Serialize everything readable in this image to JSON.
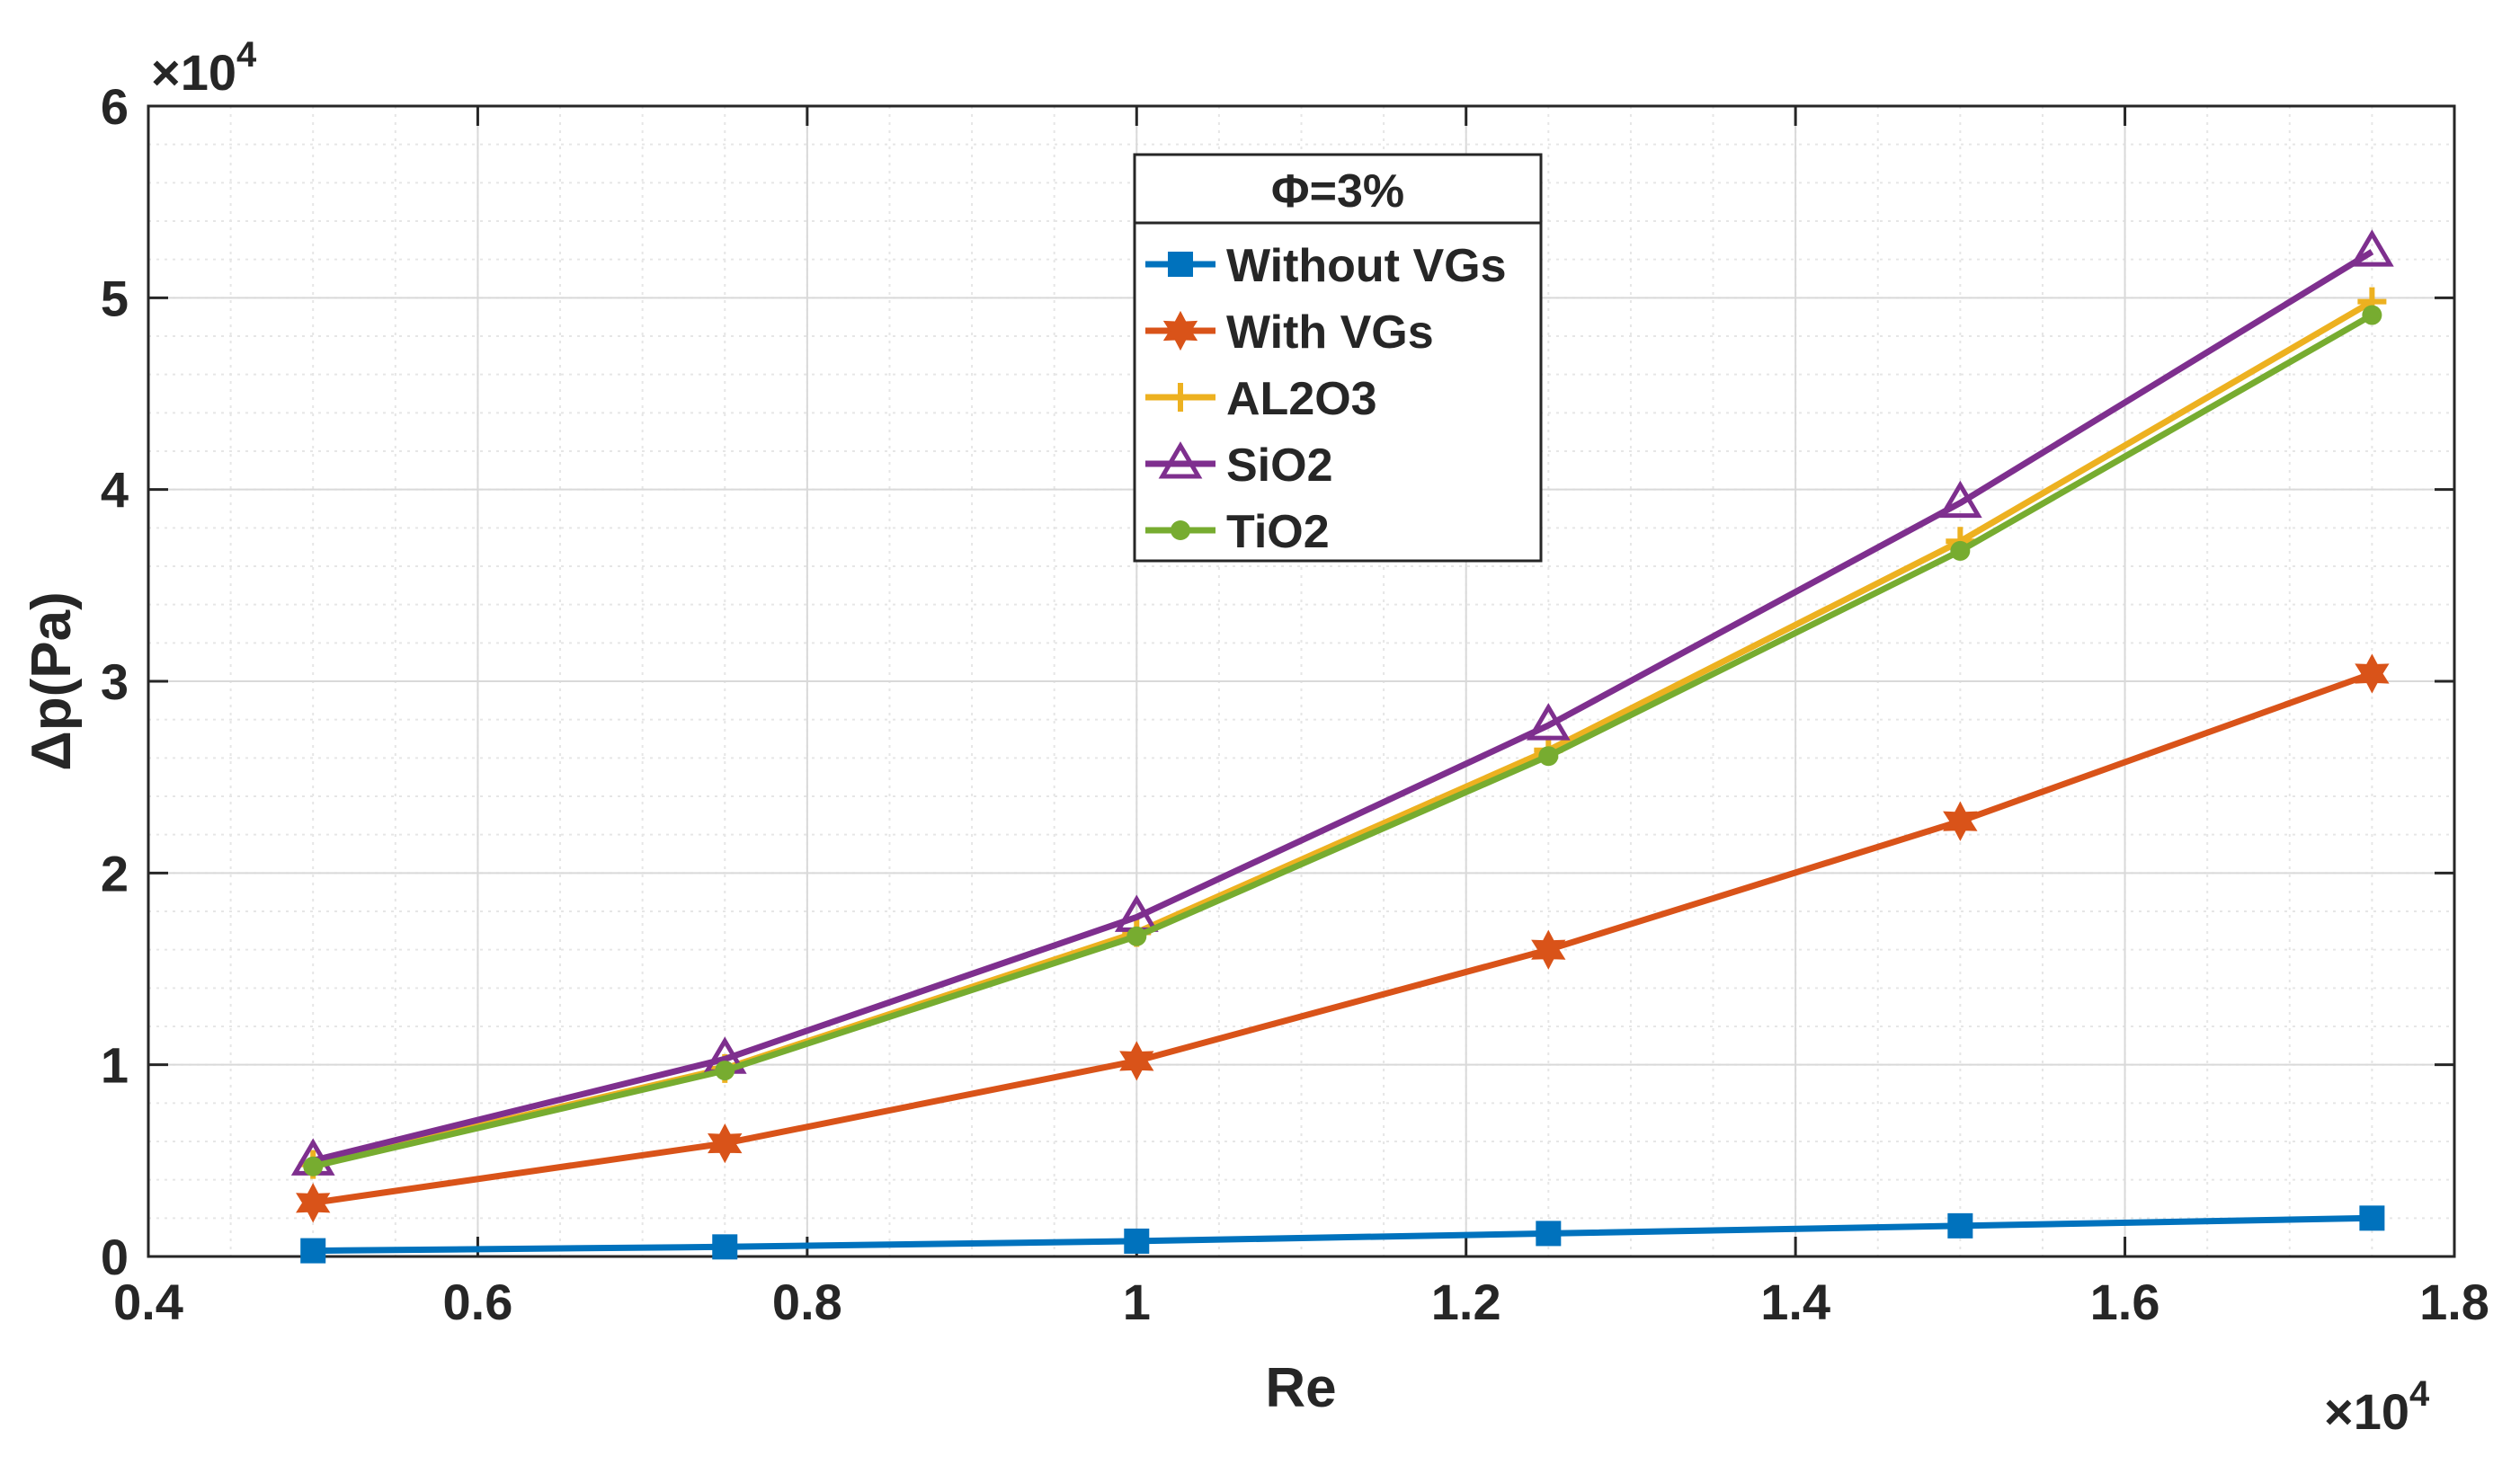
{
  "chart_data": {
    "type": "line",
    "title": "",
    "xlabel": "Re",
    "ylabel": "Δp(Pa)",
    "x_multiplier": "×10",
    "x_multiplier_exp": "4",
    "y_multiplier": "×10",
    "y_multiplier_exp": "4",
    "xlim": [
      0.4,
      1.8
    ],
    "ylim": [
      0,
      6
    ],
    "x_ticks": [
      0.4,
      0.6,
      0.8,
      1,
      1.2,
      1.4,
      1.6,
      1.8
    ],
    "x_tick_labels": [
      "0.4",
      "0.6",
      "0.8",
      "1",
      "1.2",
      "1.4",
      "1.6",
      "1.8"
    ],
    "y_ticks": [
      0,
      1,
      2,
      3,
      4,
      5,
      6
    ],
    "y_tick_labels": [
      "0",
      "1",
      "2",
      "3",
      "4",
      "5",
      "6"
    ],
    "grid": true,
    "x": [
      0.5,
      0.75,
      1.0,
      1.25,
      1.5,
      1.75
    ],
    "legend": {
      "title": "Φ=3%",
      "placement": "top-center"
    },
    "series": [
      {
        "name": "Without VGs",
        "color": "#0072BD",
        "marker": "square",
        "values": [
          0.03,
          0.05,
          0.08,
          0.12,
          0.16,
          0.2
        ]
      },
      {
        "name": "With VGs",
        "color": "#D95319",
        "marker": "hexagram",
        "values": [
          0.28,
          0.59,
          1.02,
          1.6,
          2.27,
          3.04
        ]
      },
      {
        "name": "AL2O3",
        "color": "#EDB120",
        "marker": "plus",
        "values": [
          0.48,
          0.98,
          1.69,
          2.64,
          3.73,
          4.98
        ]
      },
      {
        "name": "SiO2",
        "color": "#7E2F8E",
        "marker": "triangle",
        "values": [
          0.5,
          1.03,
          1.77,
          2.77,
          3.93,
          5.24
        ]
      },
      {
        "name": "TiO2",
        "color": "#77AC30",
        "marker": "circle",
        "values": [
          0.47,
          0.97,
          1.67,
          2.61,
          3.68,
          4.91
        ]
      }
    ]
  }
}
